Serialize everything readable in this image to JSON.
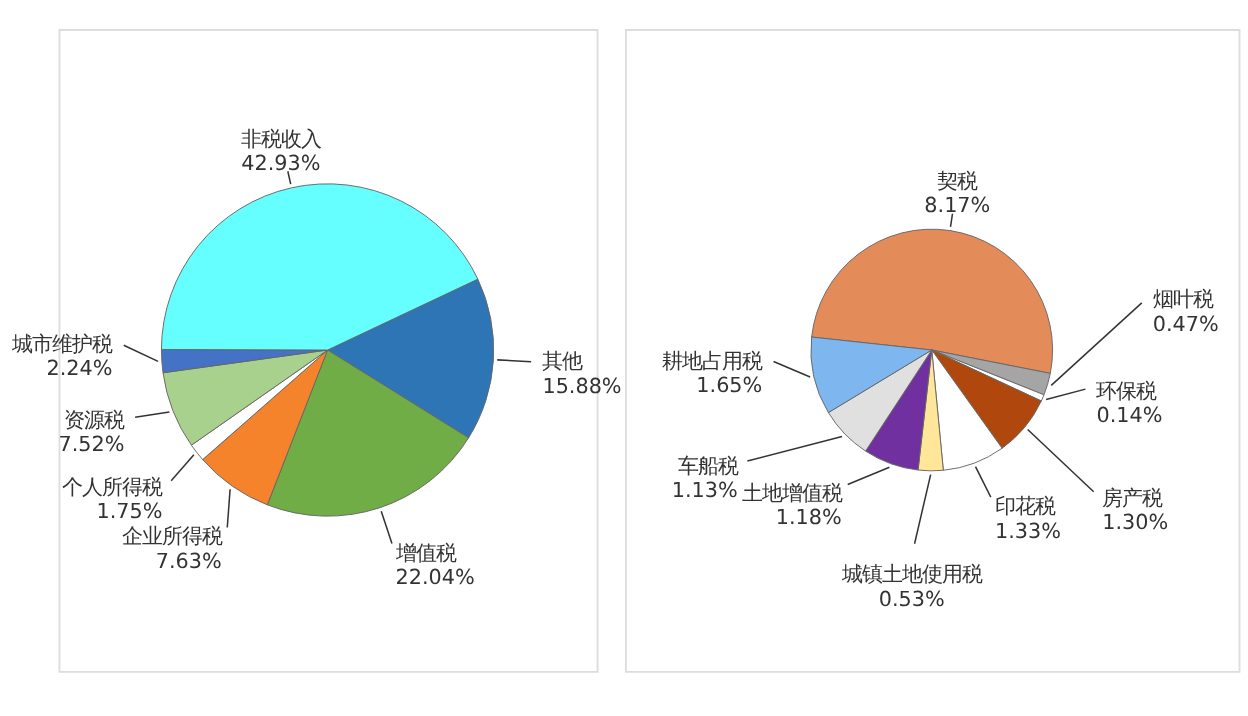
{
  "chart_data": [
    {
      "type": "pie",
      "categories": [
        "其他",
        "增值税",
        "企业所得税",
        "个人所得税",
        "资源税",
        "城市维护税",
        "非税收入"
      ],
      "values": [
        15.88,
        22.04,
        7.63,
        1.75,
        7.52,
        2.24,
        42.93
      ],
      "colors": [
        "#2e75b6",
        "#70ad47",
        "#f4832c",
        "#ffffff",
        "#a9d18e",
        "#4472c4",
        "#66ffff"
      ],
      "value_labels": [
        "15.88%",
        "22.04%",
        "7.63%",
        "1.75%",
        "7.52%",
        "2.24%",
        "42.93%"
      ],
      "legend": false
    },
    {
      "type": "pie",
      "categories": [
        "契税",
        "烟叶税",
        "环保税",
        "房产税",
        "印花税",
        "城镇土地使用税",
        "土地增值税",
        "车船税",
        "耕地占用税"
      ],
      "values": [
        8.17,
        0.47,
        0.14,
        1.3,
        1.33,
        0.53,
        1.18,
        1.13,
        1.65
      ],
      "colors": [
        "#e38c5a",
        "#a5a5a5",
        "#ffffff",
        "#b0480e",
        "#ffffff",
        "#ffe699",
        "#7030a0",
        "#e0e0e0",
        "#7eb6f0"
      ],
      "value_labels": [
        "8.17%",
        "0.47%",
        "0.14%",
        "1.30%",
        "1.33%",
        "0.53%",
        "1.18%",
        "1.13%",
        "1.65%"
      ],
      "legend": false
    }
  ]
}
